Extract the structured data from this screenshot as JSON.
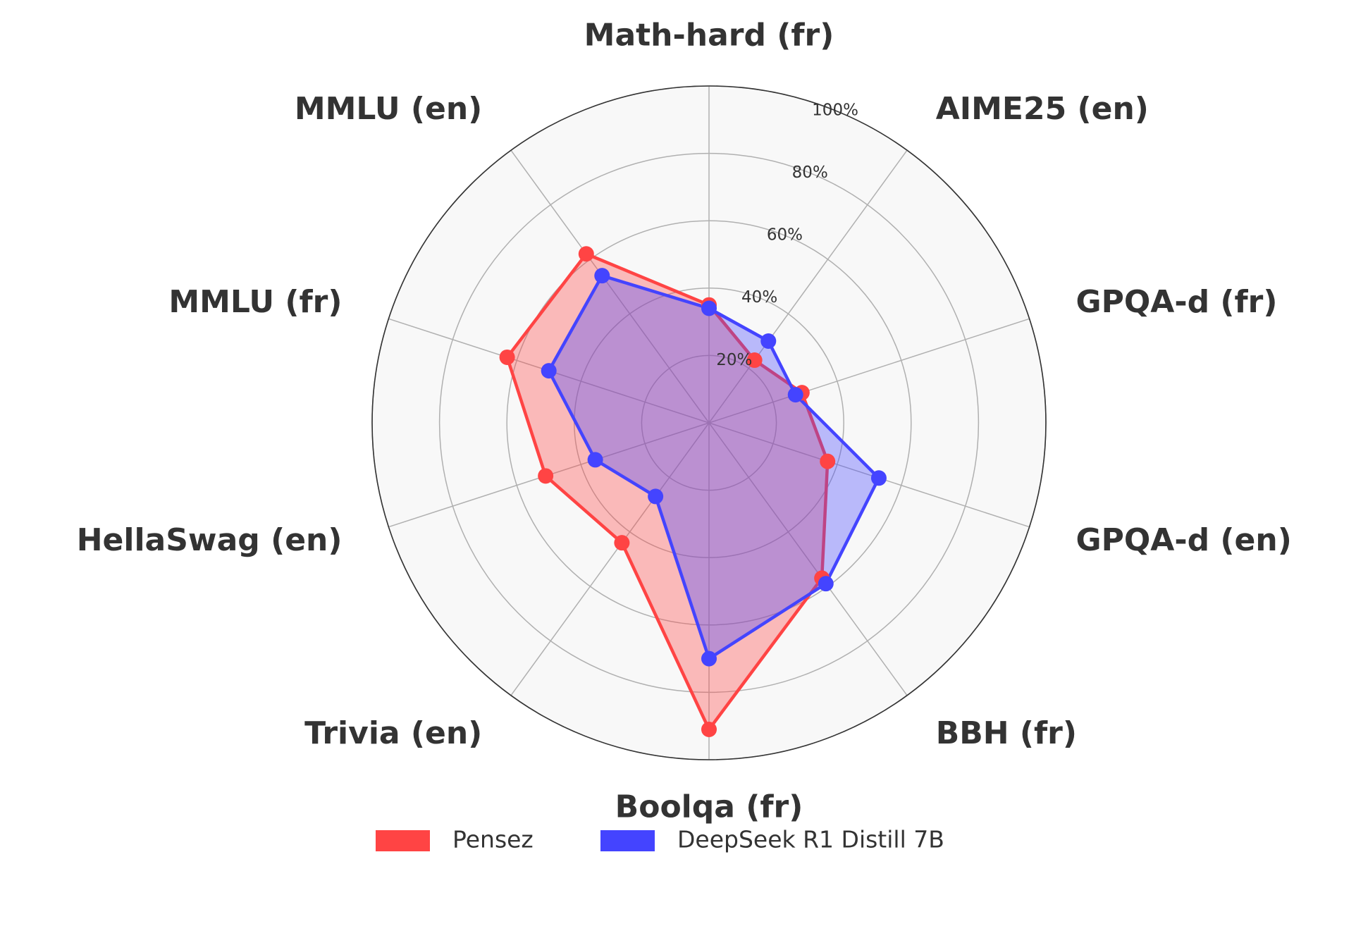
{
  "chart_data": {
    "type": "radar",
    "categories": [
      "Math-hard (fr)",
      "AIME25 (en)",
      "GPQA-d (fr)",
      "GPQA-d (en)",
      "BBH (fr)",
      "Boolqa (fr)",
      "Trivia (en)",
      "HellaSwag (en)",
      "MMLU (fr)",
      "MMLU (en)"
    ],
    "series": [
      {
        "name": "Pensez",
        "color": "#ff4444",
        "values": [
          35,
          23,
          29,
          37,
          57,
          91,
          44,
          51,
          63,
          62
        ]
      },
      {
        "name": "DeepSeek R1 Distill 7B",
        "color": "#4444ff",
        "values": [
          34,
          30,
          27,
          53,
          59,
          70,
          27,
          35.5,
          50,
          54
        ]
      }
    ],
    "ylim": [
      0,
      100
    ],
    "yticks": [
      {
        "value": 20,
        "label": "20%"
      },
      {
        "value": 40,
        "label": "40%"
      },
      {
        "value": 60,
        "label": "60%"
      },
      {
        "value": 80,
        "label": "80%"
      },
      {
        "value": 100,
        "label": "100%"
      }
    ],
    "grid": true
  }
}
